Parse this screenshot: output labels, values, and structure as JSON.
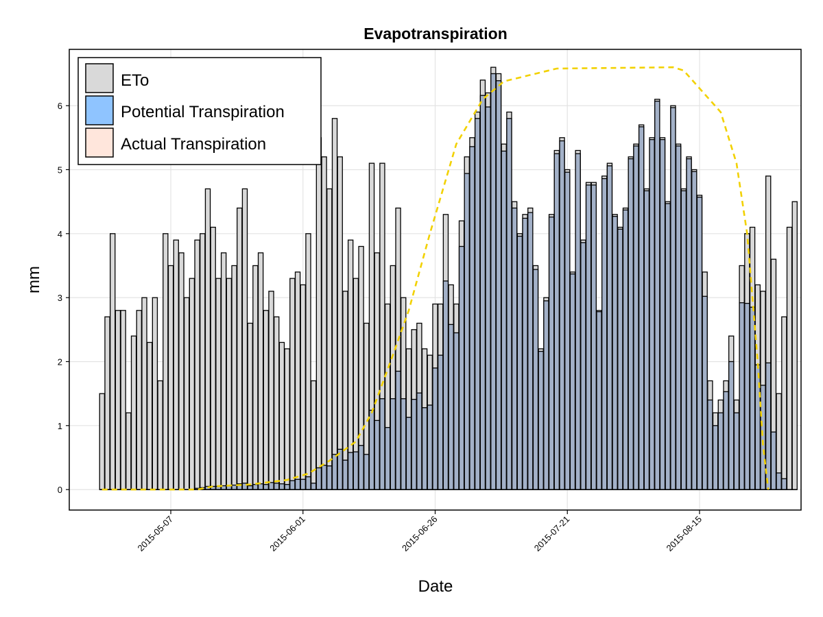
{
  "chart_data": {
    "type": "bar",
    "title": "Evapotranspiration",
    "xlabel": "Date",
    "ylabel": "mm",
    "ylim": [
      -0.32,
      6.88
    ],
    "yticks": [
      0,
      1,
      2,
      3,
      4,
      5,
      6
    ],
    "start_date": "2015-04-24",
    "end_date": "2015-08-28",
    "x_ticks": [
      "2015-05-07",
      "2015-06-01",
      "2015-06-26",
      "2015-07-21",
      "2015-08-15"
    ],
    "grid": true,
    "legend_position": "top-left",
    "colors": {
      "eto": "#d9d9d9",
      "potential": "#99c8ff",
      "potential_legend": "#8fc4ff",
      "actual": "#ffe6dc",
      "overlap": "#a3b1c8",
      "kc_line": "#f2d100",
      "grid": "#e3e3e3"
    },
    "series": [
      {
        "name": "ETo",
        "values": [
          1.5,
          2.7,
          4.0,
          2.8,
          2.8,
          1.2,
          2.4,
          2.8,
          3.0,
          2.3,
          3.0,
          1.7,
          4.0,
          3.5,
          3.9,
          3.7,
          3.0,
          3.3,
          3.9,
          4.0,
          4.7,
          4.1,
          3.3,
          3.7,
          3.3,
          3.5,
          4.4,
          4.7,
          2.6,
          3.5,
          3.7,
          2.8,
          3.1,
          2.7,
          2.3,
          2.2,
          3.3,
          3.4,
          3.2,
          4.0,
          1.7,
          5.5,
          5.2,
          4.7,
          5.8,
          5.2,
          3.1,
          3.9,
          3.3,
          3.8,
          2.6,
          5.1,
          3.7,
          5.1,
          2.9,
          3.5,
          4.4,
          3.0,
          2.2,
          2.5,
          2.6,
          2.2,
          2.1,
          2.9,
          2.9,
          4.3,
          3.2,
          2.9,
          4.2,
          5.2,
          5.5,
          5.9,
          6.4,
          6.2,
          6.6,
          6.5,
          5.4,
          5.9,
          4.5,
          4.0,
          4.3,
          4.4,
          3.5,
          2.2,
          3.0,
          4.3,
          5.3,
          5.5,
          5.0,
          3.4,
          5.3,
          3.9,
          4.8,
          4.8,
          2.8,
          4.9,
          5.1,
          4.3,
          4.1,
          4.4,
          5.2,
          5.4,
          5.7,
          4.7,
          5.5,
          6.1,
          5.5,
          4.5,
          6.0,
          5.4,
          4.7,
          5.2,
          5.0,
          4.6,
          3.4,
          1.7,
          1.2,
          1.4,
          1.7,
          2.4,
          1.4,
          3.5,
          4.0,
          4.1,
          3.2,
          3.1,
          4.9,
          3.6,
          1.5,
          2.7,
          4.1,
          4.5
        ],
        "color": "#d9d9d9"
      },
      {
        "name": "Potential Transpiration",
        "values": [
          0.0,
          0.0,
          0.0,
          0.0,
          0.0,
          0.0,
          0.0,
          0.0,
          0.0,
          0.0,
          0.0,
          0.0,
          0.0,
          0.0,
          0.0,
          0.0,
          0.0,
          0.0,
          0.02,
          0.03,
          0.05,
          0.05,
          0.05,
          0.06,
          0.06,
          0.07,
          0.09,
          0.1,
          0.06,
          0.08,
          0.09,
          0.08,
          0.11,
          0.1,
          0.09,
          0.08,
          0.14,
          0.16,
          0.16,
          0.2,
          0.1,
          0.34,
          0.38,
          0.37,
          0.55,
          0.63,
          0.46,
          0.58,
          0.59,
          0.69,
          0.55,
          1.24,
          1.08,
          1.42,
          0.97,
          1.42,
          1.85,
          1.42,
          1.13,
          1.41,
          1.51,
          1.28,
          1.32,
          1.9,
          2.1,
          3.26,
          2.58,
          2.45,
          3.8,
          4.94,
          5.36,
          5.8,
          6.16,
          5.98,
          6.5,
          6.39,
          5.29,
          5.8,
          4.4,
          3.96,
          4.24,
          4.33,
          3.44,
          2.16,
          2.95,
          4.26,
          5.25,
          5.45,
          4.96,
          3.37,
          5.25,
          3.86,
          4.76,
          4.76,
          2.78,
          4.86,
          5.06,
          4.27,
          4.07,
          4.37,
          5.17,
          5.37,
          5.67,
          4.67,
          5.47,
          6.07,
          5.47,
          4.47,
          5.97,
          5.37,
          4.67,
          5.17,
          4.97,
          4.57,
          3.02,
          1.4,
          1.0,
          1.2,
          1.53,
          2.0,
          1.2,
          2.92,
          2.91,
          2.85,
          1.95,
          1.63,
          1.98,
          0.9,
          0.26,
          0.17,
          0.0,
          0.0
        ],
        "color": "#99c8ff"
      },
      {
        "name": "Actual Transpiration",
        "values": [
          0.0,
          0.0,
          0.0,
          0.0,
          0.0,
          0.0,
          0.0,
          0.0,
          0.0,
          0.0,
          0.0,
          0.0,
          0.0,
          0.0,
          0.0,
          0.0,
          0.0,
          0.0,
          0.02,
          0.03,
          0.05,
          0.05,
          0.05,
          0.06,
          0.06,
          0.07,
          0.09,
          0.1,
          0.06,
          0.08,
          0.09,
          0.08,
          0.11,
          0.1,
          0.09,
          0.08,
          0.14,
          0.16,
          0.16,
          0.2,
          0.1,
          0.34,
          0.38,
          0.37,
          0.55,
          0.63,
          0.46,
          0.58,
          0.59,
          0.69,
          0.55,
          1.24,
          1.08,
          1.42,
          0.97,
          1.42,
          1.85,
          1.42,
          1.13,
          1.41,
          1.51,
          1.28,
          1.32,
          1.9,
          2.1,
          3.26,
          2.58,
          2.45,
          3.8,
          4.94,
          5.36,
          5.8,
          6.16,
          5.98,
          6.5,
          6.39,
          5.29,
          5.8,
          4.4,
          3.96,
          4.24,
          4.33,
          3.44,
          2.16,
          2.95,
          4.26,
          5.25,
          5.45,
          4.96,
          3.37,
          5.25,
          3.86,
          4.76,
          4.76,
          2.78,
          4.86,
          5.06,
          4.27,
          4.07,
          4.37,
          5.17,
          5.37,
          5.67,
          4.67,
          5.47,
          6.07,
          5.47,
          4.47,
          5.97,
          5.37,
          4.67,
          5.17,
          4.97,
          4.57,
          3.02,
          1.4,
          1.0,
          1.2,
          1.53,
          2.0,
          1.2,
          2.92,
          2.91,
          2.85,
          1.95,
          1.63,
          1.98,
          0.9,
          0.26,
          0.17,
          0.0,
          0.0
        ],
        "color": "#ffe6dc"
      }
    ],
    "lines": [
      {
        "style": "dashed",
        "color": "#f2d100",
        "points": [
          [
            "2015-04-24",
            0.0
          ],
          [
            "2015-05-12",
            0.0
          ],
          [
            "2015-05-15",
            0.05
          ],
          [
            "2015-05-22",
            0.08
          ],
          [
            "2015-05-29",
            0.15
          ],
          [
            "2015-06-02",
            0.25
          ],
          [
            "2015-06-06",
            0.45
          ],
          [
            "2015-06-11",
            0.75
          ],
          [
            "2015-06-14",
            1.2
          ],
          [
            "2015-06-18",
            2.1
          ],
          [
            "2015-06-21",
            2.8
          ],
          [
            "2015-06-25",
            4.0
          ],
          [
            "2015-06-30",
            5.4
          ],
          [
            "2015-07-05",
            6.1
          ],
          [
            "2015-07-09",
            6.38
          ],
          [
            "2015-07-19",
            6.58
          ],
          [
            "2015-08-10",
            6.6
          ],
          [
            "2015-08-12",
            6.55
          ],
          [
            "2015-08-19",
            5.9
          ],
          [
            "2015-08-22",
            5.1
          ],
          [
            "2015-08-24",
            4.0
          ],
          [
            "2015-08-26",
            2.0
          ],
          [
            "2015-08-27",
            0.7
          ],
          [
            "2015-08-28",
            0.0
          ]
        ]
      }
    ]
  }
}
